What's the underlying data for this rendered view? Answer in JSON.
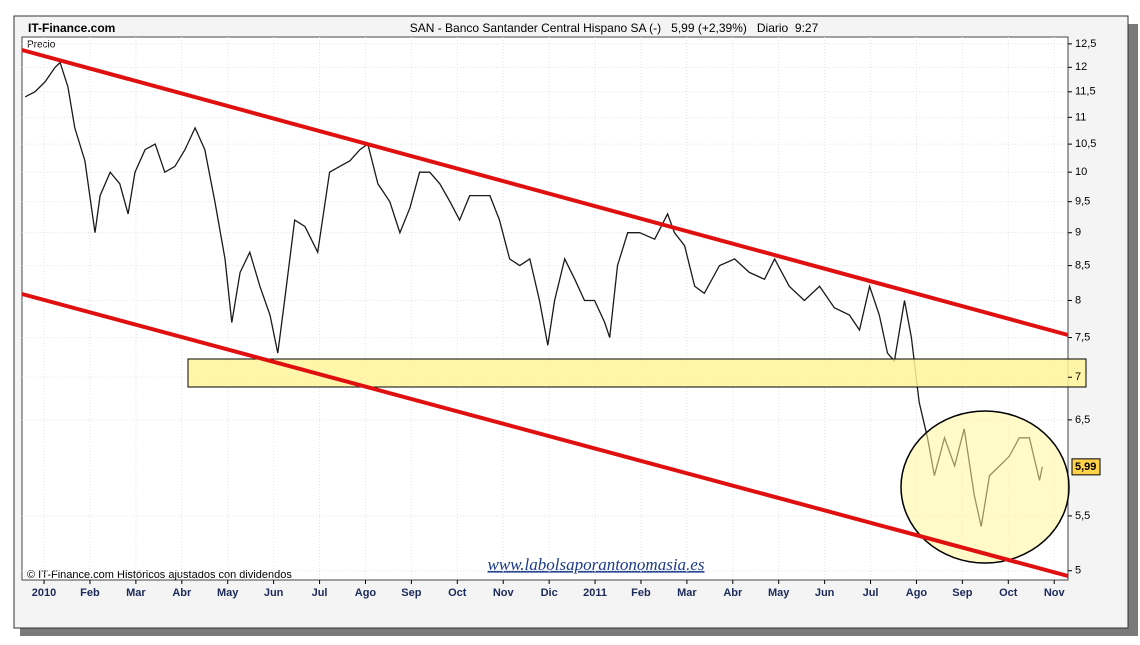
{
  "brand": "IT-Finance.com",
  "chart_data": {
    "type": "line",
    "title": "SAN - Banco Santander Central Hispano SA (-)   5,99 (+2,39%)   Diario  9:27",
    "y_label": "Precio",
    "footnote": "© IT-Finance.com  Históricos ajustados con dividendos",
    "watermark": "www.labolsaporantonomasia.es",
    "log_scale": true,
    "grid": true,
    "last_price": {
      "value": 5.99,
      "label": "5,99"
    },
    "xlim": [
      -0.48,
      22.3
    ],
    "xticks": [
      {
        "value": 0,
        "label": "2010"
      },
      {
        "value": 1,
        "label": "Feb"
      },
      {
        "value": 2,
        "label": "Mar"
      },
      {
        "value": 3,
        "label": "Abr"
      },
      {
        "value": 4,
        "label": "May"
      },
      {
        "value": 5,
        "label": "Jun"
      },
      {
        "value": 6,
        "label": "Jul"
      },
      {
        "value": 7,
        "label": "Ago"
      },
      {
        "value": 8,
        "label": "Sep"
      },
      {
        "value": 9,
        "label": "Oct"
      },
      {
        "value": 10,
        "label": "Nov"
      },
      {
        "value": 11,
        "label": "Dic"
      },
      {
        "value": 12,
        "label": "2011"
      },
      {
        "value": 13,
        "label": "Feb"
      },
      {
        "value": 14,
        "label": "Mar"
      },
      {
        "value": 15,
        "label": "Abr"
      },
      {
        "value": 16,
        "label": "May"
      },
      {
        "value": 17,
        "label": "Jun"
      },
      {
        "value": 18,
        "label": "Jul"
      },
      {
        "value": 19,
        "label": "Ago"
      },
      {
        "value": 20,
        "label": "Sep"
      },
      {
        "value": 21,
        "label": "Oct"
      },
      {
        "value": 22,
        "label": "Nov"
      }
    ],
    "ylim": [
      4.92,
      12.65
    ],
    "yticks": [
      {
        "value": 12.5,
        "label": "12,5"
      },
      12,
      {
        "value": 11.5,
        "label": "11,5"
      },
      11,
      {
        "value": 10.5,
        "label": "10,5"
      },
      10,
      {
        "value": 9.5,
        "label": "9,5"
      },
      9,
      {
        "value": 8.5,
        "label": "8,5"
      },
      8,
      {
        "value": 7.5,
        "label": "7,5"
      },
      7,
      {
        "value": 6.5,
        "label": "6,5"
      },
      {
        "value": 5.5,
        "label": "5,5"
      },
      5
    ],
    "series": [
      {
        "name": "SAN",
        "color": "#1a1a1a",
        "x": [
          -0.41,
          -0.2,
          0.02,
          0.24,
          0.35,
          0.52,
          0.67,
          0.89,
          1.11,
          1.22,
          1.44,
          1.65,
          1.83,
          1.98,
          2.2,
          2.42,
          2.63,
          2.85,
          3.07,
          3.29,
          3.5,
          3.72,
          3.94,
          4.09,
          4.27,
          4.48,
          4.7,
          4.92,
          5.09,
          5.24,
          5.46,
          5.68,
          5.96,
          6.22,
          6.44,
          6.66,
          6.88,
          7.05,
          7.27,
          7.53,
          7.75,
          7.97,
          8.18,
          8.4,
          8.62,
          8.84,
          9.05,
          9.27,
          9.49,
          9.71,
          9.92,
          10.14,
          10.36,
          10.58,
          10.79,
          10.97,
          11.12,
          11.34,
          11.56,
          11.77,
          11.99,
          12.21,
          12.32,
          12.49,
          12.71,
          12.97,
          13.3,
          13.58,
          13.73,
          13.95,
          14.17,
          14.38,
          14.71,
          15.04,
          15.36,
          15.69,
          15.91,
          16.23,
          16.56,
          16.89,
          17.21,
          17.54,
          17.76,
          17.98,
          18.19,
          18.37,
          18.52,
          18.74,
          18.89,
          19.06,
          19.24,
          19.39,
          19.61,
          19.83,
          20.04,
          20.26,
          20.41,
          20.59,
          20.81,
          21.02,
          21.24,
          21.46,
          21.68,
          21.74
        ],
        "values": [
          11.4,
          11.5,
          11.7,
          12.0,
          12.1,
          11.6,
          10.8,
          10.2,
          9.0,
          9.6,
          10.0,
          9.8,
          9.3,
          10.0,
          10.4,
          10.5,
          10.0,
          10.1,
          10.4,
          10.8,
          10.4,
          9.5,
          8.6,
          7.7,
          8.4,
          8.7,
          8.2,
          7.8,
          7.3,
          8.0,
          9.2,
          9.1,
          8.7,
          10.0,
          10.1,
          10.2,
          10.4,
          10.5,
          9.8,
          9.5,
          9.0,
          9.4,
          10.0,
          10.0,
          9.8,
          9.5,
          9.2,
          9.6,
          9.6,
          9.6,
          9.2,
          8.6,
          8.5,
          8.6,
          8.0,
          7.4,
          8.0,
          8.6,
          8.3,
          8.0,
          8.0,
          7.7,
          7.5,
          8.5,
          9.0,
          9.0,
          8.9,
          9.3,
          9.0,
          8.8,
          8.2,
          8.1,
          8.5,
          8.6,
          8.4,
          8.3,
          8.6,
          8.2,
          8.0,
          8.2,
          7.9,
          7.8,
          7.6,
          8.2,
          7.8,
          7.3,
          7.2,
          8.0,
          7.5,
          6.7,
          6.3,
          5.9,
          6.3,
          6.0,
          6.4,
          5.7,
          5.4,
          5.9,
          6.0,
          6.1,
          6.3,
          6.3,
          5.85,
          5.99
        ]
      }
    ]
  }
}
